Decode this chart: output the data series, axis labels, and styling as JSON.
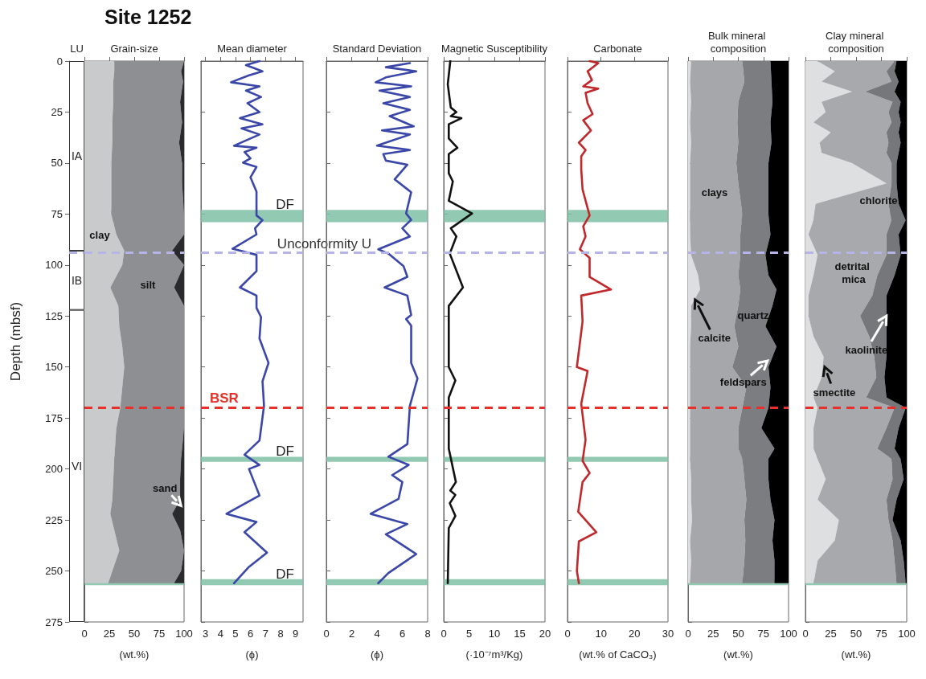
{
  "chart_data": [
    {
      "type": "bar",
      "stacked": true,
      "title": "LU",
      "ylabel": "Depth (mbsf)",
      "ylim": [
        275,
        0
      ],
      "yticks": [
        0,
        25,
        50,
        75,
        100,
        125,
        150,
        175,
        200,
        225,
        250,
        275
      ],
      "tick_labels": "y",
      "categories": [
        null
      ],
      "series": [
        {
          "name": "IA",
          "color": "#ffffff",
          "values": [
            93
          ]
        },
        {
          "name": "IB",
          "color": "#ffffff",
          "values": [
            29
          ]
        },
        {
          "name": "VI",
          "color": "#ffffff",
          "values": [
            153
          ]
        }
      ],
      "annotations": [
        "Site 1252"
      ],
      "ref_lines": [
        {
          "axis": "y",
          "value": 94,
          "color": "#b4b4e6",
          "line_style": "dashed"
        }
      ]
    },
    {
      "type": "area",
      "stacked": true,
      "orientation": "horizontal",
      "title": "Grain-size",
      "xlabel": "(wt.%)",
      "xlim": [
        0,
        100
      ],
      "xticks": [
        0,
        25,
        50,
        75,
        100
      ],
      "ylim": [
        275,
        0
      ],
      "yticks": [
        0,
        25,
        50,
        75,
        100,
        125,
        150,
        175,
        200,
        225,
        250,
        275
      ],
      "tick_labels": "x",
      "x": [
        0,
        5,
        10,
        20,
        30,
        40,
        50,
        60,
        75,
        85,
        93,
        100,
        111,
        120,
        130,
        140,
        150,
        160,
        170,
        180,
        195,
        205,
        215,
        222,
        230,
        240,
        250,
        256
      ],
      "series": [
        {
          "color": "#c9cacc",
          "values": [
            30,
            30,
            29,
            29,
            28,
            28,
            27,
            27,
            27,
            32,
            40,
            38,
            26,
            34,
            35,
            38,
            40,
            38,
            36,
            32,
            30,
            29,
            28,
            26,
            30,
            35,
            28,
            24
          ]
        },
        {
          "color": "#8e8f93",
          "values": [
            70,
            67,
            70,
            67,
            70,
            67,
            71,
            71,
            73,
            68,
            48,
            62,
            64,
            66,
            65,
            62,
            60,
            62,
            64,
            68,
            67,
            67,
            68,
            62,
            66,
            65,
            69,
            66
          ]
        },
        {
          "color": "#2a2a2c",
          "values": [
            0,
            3,
            1,
            4,
            2,
            5,
            2,
            2,
            0,
            0,
            12,
            0,
            10,
            0,
            0,
            0,
            0,
            0,
            0,
            0,
            3,
            4,
            4,
            12,
            4,
            0,
            3,
            10
          ]
        }
      ],
      "annotations": [
        "clay",
        "silt",
        {
          "text": "sand",
          "x": 97,
          "y": 218
        }
      ],
      "bands": [
        {
          "axis": "y",
          "from": 73,
          "to": 79,
          "color": "#7fbfa6"
        },
        {
          "axis": "y",
          "from": 194,
          "to": 196.5,
          "color": "#7fbfa6"
        },
        {
          "axis": "y",
          "from": 254,
          "to": 257,
          "color": "#7fbfa6"
        }
      ],
      "ref_lines": [
        {
          "axis": "y",
          "value": 94,
          "color": "#b4b4e6",
          "line_style": "dashed"
        },
        {
          "axis": "y",
          "value": 170,
          "color": "#e8302a",
          "line_style": "dashed"
        }
      ]
    },
    {
      "type": "line",
      "orientation": "horizontal",
      "title": "Mean diameter",
      "xlabel": "(ϕ)",
      "xlim": [
        2.7,
        9.5
      ],
      "xticks": [
        3,
        4,
        5,
        6,
        7,
        8,
        9
      ],
      "ylim": [
        275,
        0
      ],
      "yticks": [
        0,
        25,
        50,
        75,
        100,
        125,
        150,
        175,
        200,
        225,
        250,
        275
      ],
      "tick_labels": "x",
      "x": [
        0,
        2,
        5,
        7,
        10.4,
        12.4,
        14.5,
        17.6,
        20.7,
        25,
        28,
        31,
        33,
        36,
        41.5,
        42.5,
        44.6,
        47.7,
        49.8,
        51.9,
        57,
        64,
        75.7,
        78,
        82,
        85,
        92,
        95,
        103,
        111,
        115,
        121,
        125.5,
        136,
        148,
        157,
        169,
        186,
        193,
        198,
        200,
        213,
        222,
        226,
        231,
        241,
        248,
        256
      ],
      "series": [
        {
          "color": "#3a47a8",
          "values": [
            6.6,
            5.7,
            6.8,
            5.9,
            4.7,
            6.6,
            5.7,
            6.7,
            5.8,
            6.6,
            5.3,
            6.8,
            5.4,
            6.6,
            4.9,
            6.4,
            5.6,
            6.0,
            5.5,
            6.4,
            6.0,
            6.4,
            6.4,
            6.8,
            6.3,
            6.4,
            4.8,
            6.4,
            6.4,
            5.3,
            6.4,
            6.4,
            6.7,
            6.6,
            7.2,
            6.8,
            6.9,
            6.6,
            5.6,
            6.6,
            5.9,
            6.6,
            4.4,
            6.4,
            5.6,
            7.1,
            5.9,
            4.9
          ]
        }
      ],
      "bands": [
        {
          "axis": "y",
          "from": 73,
          "to": 79,
          "color": "#7fbfa6",
          "label": "DF"
        },
        {
          "axis": "y",
          "from": 194,
          "to": 196.5,
          "color": "#7fbfa6",
          "label": "DF"
        },
        {
          "axis": "y",
          "from": 254,
          "to": 257,
          "color": "#7fbfa6",
          "label": "DF"
        }
      ],
      "ref_lines": [
        {
          "axis": "y",
          "value": 94,
          "color": "#b4b4e6",
          "line_style": "dashed",
          "label": "Unconformity U"
        },
        {
          "axis": "y",
          "value": 170,
          "color": "#e8302a",
          "line_style": "dashed",
          "label": "BSR"
        }
      ]
    },
    {
      "type": "line",
      "orientation": "horizontal",
      "title": "Standard Deviation",
      "xlabel": "(ϕ)",
      "xlim": [
        0,
        8
      ],
      "xticks": [
        0,
        2,
        4,
        6,
        8
      ],
      "ylim": [
        275,
        0
      ],
      "yticks": [
        0,
        25,
        50,
        75,
        100,
        125,
        150,
        175,
        200,
        225,
        250,
        275
      ],
      "tick_labels": "x",
      "x": [
        1,
        3,
        5,
        8,
        10.4,
        12.4,
        14.5,
        17.6,
        20.7,
        23.9,
        27,
        32,
        34,
        36,
        41.5,
        43.6,
        45.6,
        48.8,
        50.8,
        58,
        64.3,
        74.7,
        77.8,
        82,
        86,
        92.3,
        94.4,
        100.6,
        105.8,
        111,
        115,
        124.5,
        126.5,
        129.7,
        148,
        155.6,
        169,
        187.8,
        194,
        198,
        203,
        206.4,
        214.7,
        222,
        227,
        232,
        241.7,
        251,
        256
      ],
      "series": [
        {
          "color": "#3a47a8",
          "values": [
            6.6,
            4.7,
            7.1,
            4.7,
            3.9,
            6.7,
            4.2,
            6.6,
            4.5,
            6.6,
            5.0,
            6.9,
            4.4,
            6.6,
            4.0,
            6.6,
            4.5,
            4.7,
            6.4,
            5.4,
            6.7,
            6.3,
            6.7,
            6.0,
            6.6,
            4.1,
            4.9,
            6.1,
            6.4,
            4.6,
            6.4,
            6.7,
            6.3,
            6.7,
            6.7,
            7.2,
            6.6,
            6.4,
            4.9,
            6.5,
            5.2,
            6.0,
            5.7,
            3.5,
            6.4,
            4.7,
            7.1,
            4.9,
            4.1
          ]
        }
      ],
      "bands": [
        {
          "axis": "y",
          "from": 73,
          "to": 79,
          "color": "#7fbfa6"
        },
        {
          "axis": "y",
          "from": 194,
          "to": 196.5,
          "color": "#7fbfa6"
        },
        {
          "axis": "y",
          "from": 254,
          "to": 257,
          "color": "#7fbfa6"
        }
      ],
      "ref_lines": [
        {
          "axis": "y",
          "value": 94,
          "color": "#b4b4e6",
          "line_style": "dashed"
        },
        {
          "axis": "y",
          "value": 170,
          "color": "#e8302a",
          "line_style": "dashed"
        }
      ]
    },
    {
      "type": "line",
      "orientation": "horizontal",
      "title": "Magnetic Susceptibility",
      "xlabel": "(·10⁻⁷m³/Kg)",
      "xlim": [
        0,
        20
      ],
      "xticks": [
        0,
        5,
        10,
        15,
        20
      ],
      "ylim": [
        275,
        0
      ],
      "yticks": [
        0,
        25,
        50,
        75,
        100,
        125,
        150,
        175,
        200,
        225,
        250,
        275
      ],
      "tick_labels": "x",
      "x": [
        0,
        11.4,
        22.8,
        25,
        27,
        28,
        31,
        38,
        42.5,
        45.6,
        55,
        59,
        68.5,
        74.7,
        82,
        86,
        94.4,
        111,
        120,
        150,
        156.6,
        165,
        190,
        206.4,
        210.6,
        212.7,
        216.8,
        223,
        229,
        256
      ],
      "series": [
        {
          "color": "#111111",
          "values": [
            1.3,
            0.8,
            1.4,
            2.5,
            1.4,
            3.5,
            1.0,
            1.0,
            2.7,
            1.0,
            1.0,
            1.8,
            1.0,
            5.6,
            1.4,
            2.5,
            1.2,
            3.8,
            1.0,
            1.0,
            2.3,
            1.0,
            1.0,
            2.4,
            1.3,
            2.3,
            1.2,
            2.3,
            1.0,
            0.8
          ]
        }
      ],
      "bands": [
        {
          "axis": "y",
          "from": 73,
          "to": 79,
          "color": "#7fbfa6"
        },
        {
          "axis": "y",
          "from": 194,
          "to": 196.5,
          "color": "#7fbfa6"
        },
        {
          "axis": "y",
          "from": 254,
          "to": 257,
          "color": "#7fbfa6"
        }
      ],
      "ref_lines": [
        {
          "axis": "y",
          "value": 94,
          "color": "#b4b4e6",
          "line_style": "dashed"
        },
        {
          "axis": "y",
          "value": 170,
          "color": "#e8302a",
          "line_style": "dashed"
        }
      ]
    },
    {
      "type": "line",
      "orientation": "horizontal",
      "title": "Carbonate",
      "xlabel": "(wt.% of CaCO₃)",
      "xlim": [
        0,
        30
      ],
      "xticks": [
        0,
        10,
        20,
        30
      ],
      "ylim": [
        275,
        0
      ],
      "yticks": [
        0,
        25,
        50,
        75,
        100,
        125,
        150,
        175,
        200,
        225,
        250,
        275
      ],
      "tick_labels": "x",
      "x": [
        0,
        1,
        5,
        9.3,
        12.4,
        13.5,
        15.6,
        20.7,
        26,
        29,
        34,
        40,
        43.6,
        46.7,
        53,
        63,
        75.7,
        81,
        86,
        92.3,
        96.5,
        105.8,
        112,
        115,
        127.6,
        150,
        152,
        168,
        185.7,
        196,
        202,
        206.4,
        221,
        231,
        235.5,
        250,
        256
      ],
      "series": [
        {
          "color": "#c0282b",
          "values": [
            6.6,
            9.2,
            6,
            7.3,
            4.7,
            9.2,
            5.4,
            6,
            7.5,
            4.7,
            7.0,
            3.4,
            5.4,
            4.1,
            4.1,
            4.5,
            6.6,
            4.7,
            5.4,
            3.7,
            6.6,
            6.6,
            13.0,
            4.1,
            4.5,
            2.8,
            6,
            4.1,
            5.4,
            4.5,
            6.6,
            4.5,
            3.2,
            8.6,
            3.4,
            2.8,
            3.4
          ]
        }
      ],
      "bands": [
        {
          "axis": "y",
          "from": 73,
          "to": 79,
          "color": "#7fbfa6"
        },
        {
          "axis": "y",
          "from": 194,
          "to": 196.5,
          "color": "#7fbfa6"
        },
        {
          "axis": "y",
          "from": 254,
          "to": 257,
          "color": "#7fbfa6"
        }
      ],
      "ref_lines": [
        {
          "axis": "y",
          "value": 94,
          "color": "#b4b4e6",
          "line_style": "dashed"
        },
        {
          "axis": "y",
          "value": 170,
          "color": "#e8302a",
          "line_style": "dashed"
        }
      ]
    },
    {
      "type": "area",
      "stacked": true,
      "orientation": "horizontal",
      "title": "Bulk mineral composition",
      "xlabel": "(wt.%)",
      "xlim": [
        0,
        100
      ],
      "xticks": [
        0,
        25,
        50,
        75,
        100
      ],
      "ylim": [
        275,
        0
      ],
      "yticks": [
        0,
        25,
        50,
        75,
        100,
        125,
        150,
        175,
        200,
        225,
        250,
        275
      ],
      "tick_labels": "x",
      "x": [
        0,
        10,
        20,
        30,
        40,
        50,
        60,
        75,
        85,
        95,
        105,
        112,
        120,
        130,
        140,
        150,
        160,
        170,
        180,
        190,
        195,
        205,
        215,
        225,
        235,
        245,
        256
      ],
      "series": [
        {
          "color": "#dddee0",
          "values": [
            3,
            2,
            3,
            2,
            3,
            2,
            2,
            2,
            2,
            3,
            10,
            12,
            3,
            3,
            2,
            2,
            2,
            2,
            2,
            2,
            2,
            3,
            3,
            4,
            2,
            3,
            2
          ]
        },
        {
          "color": "#a6a7aa",
          "values": [
            51,
            54,
            47,
            47,
            47,
            46,
            48,
            52,
            50,
            49,
            40,
            40,
            47,
            43,
            48,
            42,
            56,
            52,
            48,
            48,
            52,
            53,
            55,
            52,
            55,
            53,
            52
          ]
        },
        {
          "color": "#7c7d81",
          "values": [
            28,
            27,
            34,
            33,
            33,
            32,
            30,
            26,
            30,
            25,
            30,
            36,
            34,
            31,
            38,
            36,
            24,
            26,
            23,
            36,
            26,
            24,
            24,
            30,
            27,
            30,
            32
          ]
        },
        {
          "color": "#000000",
          "values": [
            18,
            17,
            16,
            18,
            17,
            20,
            20,
            20,
            18,
            23,
            20,
            12,
            16,
            23,
            12,
            20,
            18,
            20,
            27,
            14,
            20,
            20,
            18,
            14,
            16,
            14,
            14
          ]
        }
      ],
      "annotations": [
        "clays",
        "quartz",
        {
          "text": "calcite",
          "x": 7,
          "y": 117
        },
        {
          "text": "feldspars",
          "x": 79,
          "y": 147
        }
      ],
      "bands": [
        {
          "axis": "y",
          "from": 73,
          "to": 79,
          "color": "#7fbfa6"
        },
        {
          "axis": "y",
          "from": 194,
          "to": 196.5,
          "color": "#7fbfa6"
        },
        {
          "axis": "y",
          "from": 254,
          "to": 257,
          "color": "#7fbfa6"
        }
      ],
      "ref_lines": [
        {
          "axis": "y",
          "value": 94,
          "color": "#b4b4e6",
          "line_style": "dashed"
        },
        {
          "axis": "y",
          "value": 170,
          "color": "#e8302a",
          "line_style": "dashed"
        }
      ]
    },
    {
      "type": "area",
      "stacked": true,
      "orientation": "horizontal",
      "title": "Clay mineral composition",
      "xlabel": "(wt.%)",
      "xlim": [
        0,
        100
      ],
      "xticks": [
        0,
        25,
        50,
        75,
        100
      ],
      "ylim": [
        275,
        0
      ],
      "yticks": [
        0,
        25,
        50,
        75,
        100,
        125,
        150,
        175,
        200,
        225,
        250,
        275
      ],
      "tick_labels": "x",
      "x": [
        0,
        5,
        10,
        15,
        20,
        25,
        30,
        35,
        40,
        45,
        50,
        60,
        70,
        78,
        85,
        95,
        105,
        115,
        125,
        135,
        145,
        155,
        165,
        170,
        180,
        190,
        195,
        205,
        215,
        225,
        235,
        245,
        256
      ],
      "series": [
        {
          "color": "#dedfe1",
          "values": [
            12,
            29,
            16,
            46,
            16,
            20,
            8,
            25,
            14,
            16,
            46,
            80,
            10,
            8,
            3,
            12,
            8,
            3,
            3,
            8,
            18,
            16,
            8,
            12,
            8,
            8,
            12,
            20,
            12,
            33,
            29,
            12,
            8
          ]
        },
        {
          "color": "#a8a9ac",
          "values": [
            76,
            51,
            69,
            13,
            70,
            62,
            77,
            55,
            68,
            64,
            39,
            5,
            72,
            77,
            77,
            68,
            63,
            63,
            51,
            55,
            50,
            54,
            52,
            76,
            72,
            63,
            73,
            66,
            68,
            49,
            57,
            76,
            82
          ]
        },
        {
          "color": "#76777b",
          "values": [
            2,
            8,
            7,
            29,
            8,
            10,
            9,
            12,
            12,
            12,
            5,
            5,
            10,
            14,
            12,
            14,
            17,
            14,
            26,
            17,
            12,
            8,
            20,
            11,
            12,
            17,
            9,
            11,
            10,
            4,
            8,
            9,
            9
          ]
        },
        {
          "color": "#000000",
          "values": [
            10,
            12,
            8,
            12,
            6,
            8,
            6,
            8,
            6,
            8,
            10,
            10,
            8,
            1,
            8,
            6,
            12,
            20,
            20,
            20,
            20,
            22,
            20,
            1,
            8,
            12,
            6,
            3,
            10,
            14,
            6,
            3,
            1
          ]
        }
      ],
      "annotations": [
        "chlorite",
        "detrital mica",
        {
          "text": "kaolinite",
          "x": 80,
          "y": 125
        },
        {
          "text": "smectite",
          "x": 19,
          "y": 150
        }
      ],
      "bands": [
        {
          "axis": "y",
          "from": 73,
          "to": 79,
          "color": "#7fbfa6"
        },
        {
          "axis": "y",
          "from": 194,
          "to": 196.5,
          "color": "#7fbfa6"
        },
        {
          "axis": "y",
          "from": 254,
          "to": 257,
          "color": "#7fbfa6"
        }
      ],
      "ref_lines": [
        {
          "axis": "y",
          "value": 94,
          "color": "#b4b4e6",
          "line_style": "dashed"
        },
        {
          "axis": "y",
          "value": 170,
          "color": "#e8302a",
          "line_style": "dashed"
        }
      ]
    }
  ]
}
